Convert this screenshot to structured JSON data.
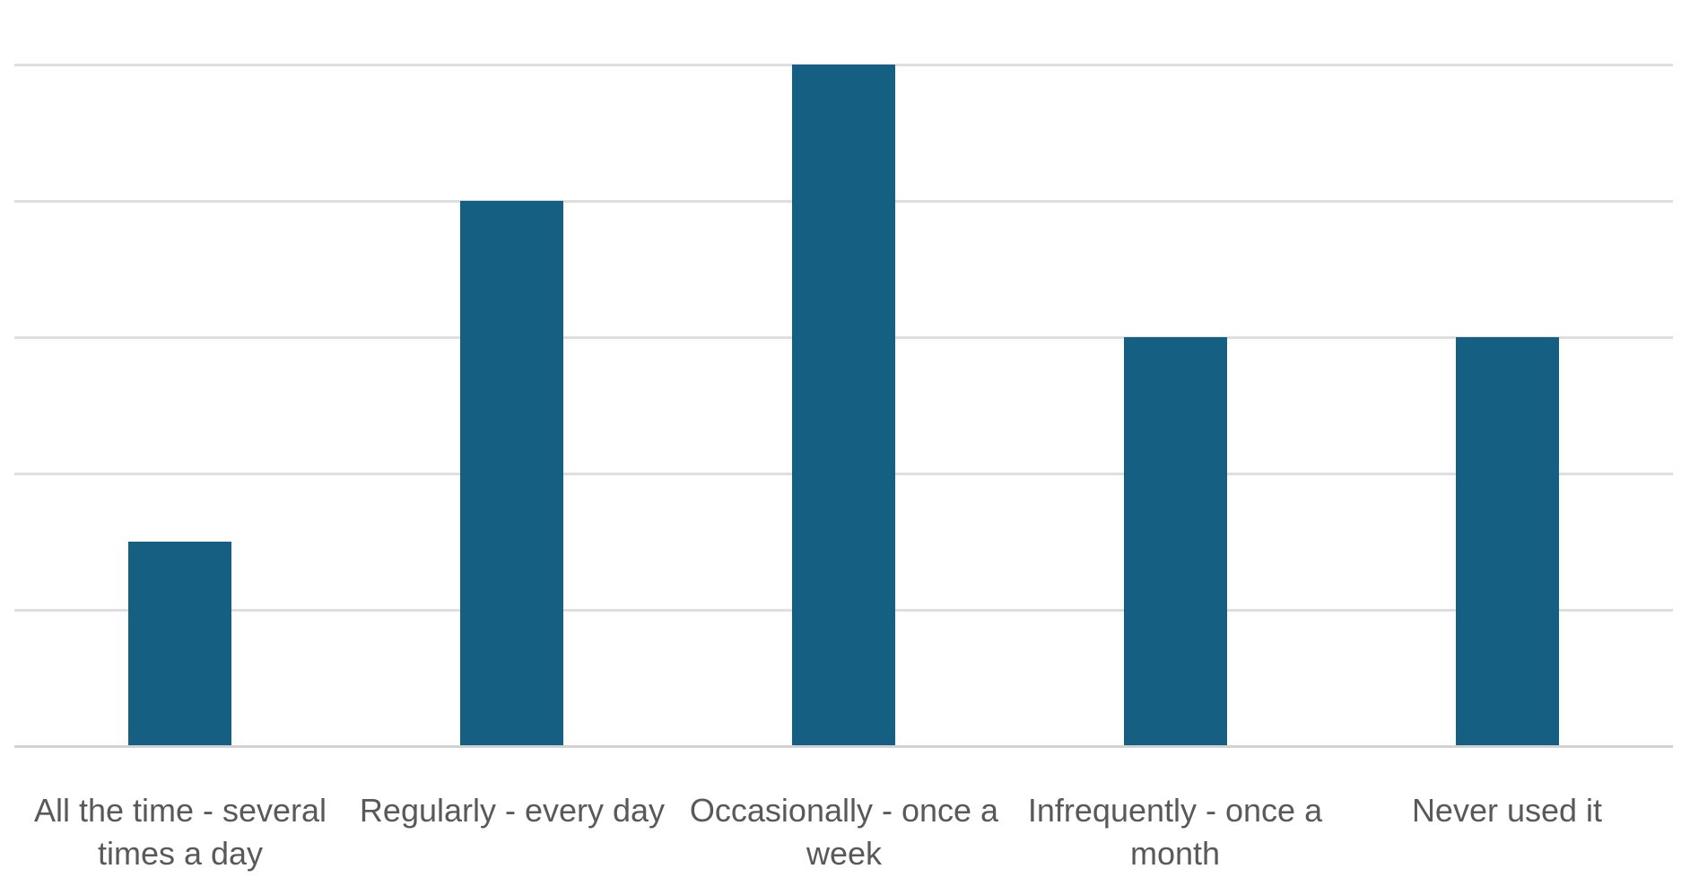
{
  "chart_data": {
    "type": "bar",
    "title": "",
    "xlabel": "",
    "ylabel": "",
    "categories": [
      "All the time - several times a day",
      "Regularly - every day",
      "Occasionally - once a week",
      "Infrequently - once a month",
      "Never used it"
    ],
    "category_lines": [
      [
        "All the time - several",
        "times a day"
      ],
      [
        "Regularly - every day"
      ],
      [
        "Occasionally - once a",
        "week"
      ],
      [
        "Infrequently - once a",
        "month"
      ],
      [
        "Never used it"
      ]
    ],
    "values": [
      1.5,
      4,
      5,
      3,
      3
    ],
    "value_unit": "gridline-units (no y-axis tick labels visible)",
    "ylim": [
      0,
      5.5
    ],
    "gridlines_y": [
      1,
      2,
      3,
      4,
      5
    ],
    "grid": true,
    "legend": "none",
    "y_axis_labels_visible": false,
    "x_axis_labels_visible": true
  },
  "style": {
    "bar_color": "#156082",
    "gridline_color": "#dedede",
    "axis_line_color": "#d2d2d2",
    "label_color": "#595959",
    "background": "#ffffff"
  }
}
